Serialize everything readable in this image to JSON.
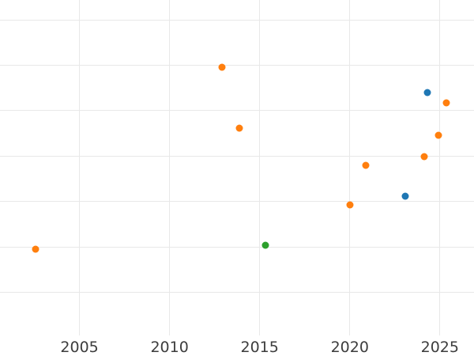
{
  "figure": {
    "background_color": "#ffffff",
    "grid_color": "#e8e8e8",
    "tick_label_color": "#3d3d3d",
    "y_axis_labels_visible": false,
    "axis_spines_visible": false
  },
  "chart_data": {
    "type": "scatter",
    "title": "",
    "xlabel": "",
    "ylabel": "",
    "grid": true,
    "legend": false,
    "x_tick_labels": [
      "2005",
      "2010",
      "2015",
      "2020",
      "2025"
    ],
    "x_ticks": [
      2005,
      2010,
      2015,
      2020,
      2025
    ],
    "xlim": [
      2000.6,
      2026.9
    ],
    "y_unit_note": "y-axis is unlabeled in the image; y values are in visible-gridline units counted up from the lowest visible horizontal gridline (0) to the highest (6)",
    "y_gridline_units": [
      0,
      1,
      2,
      3,
      4,
      5,
      6
    ],
    "ylim_gridline_units": [
      -0.95,
      6.44
    ],
    "series": [
      {
        "name": "orange-series",
        "color": "#ff7f0e",
        "points": [
          {
            "x": 2002.56,
            "y": 0.95
          },
          {
            "x": 2012.91,
            "y": 4.95
          },
          {
            "x": 2013.87,
            "y": 3.62
          },
          {
            "x": 2020.01,
            "y": 1.92
          },
          {
            "x": 2020.89,
            "y": 2.79
          },
          {
            "x": 2024.13,
            "y": 2.99
          },
          {
            "x": 2024.9,
            "y": 3.45
          },
          {
            "x": 2025.34,
            "y": 4.18
          }
        ]
      },
      {
        "name": "blue-series",
        "color": "#1f77b4",
        "points": [
          {
            "x": 2023.08,
            "y": 2.11
          },
          {
            "x": 2024.31,
            "y": 4.4
          }
        ]
      },
      {
        "name": "green-series",
        "color": "#2ca02c",
        "points": [
          {
            "x": 2015.32,
            "y": 1.03
          }
        ]
      }
    ]
  }
}
